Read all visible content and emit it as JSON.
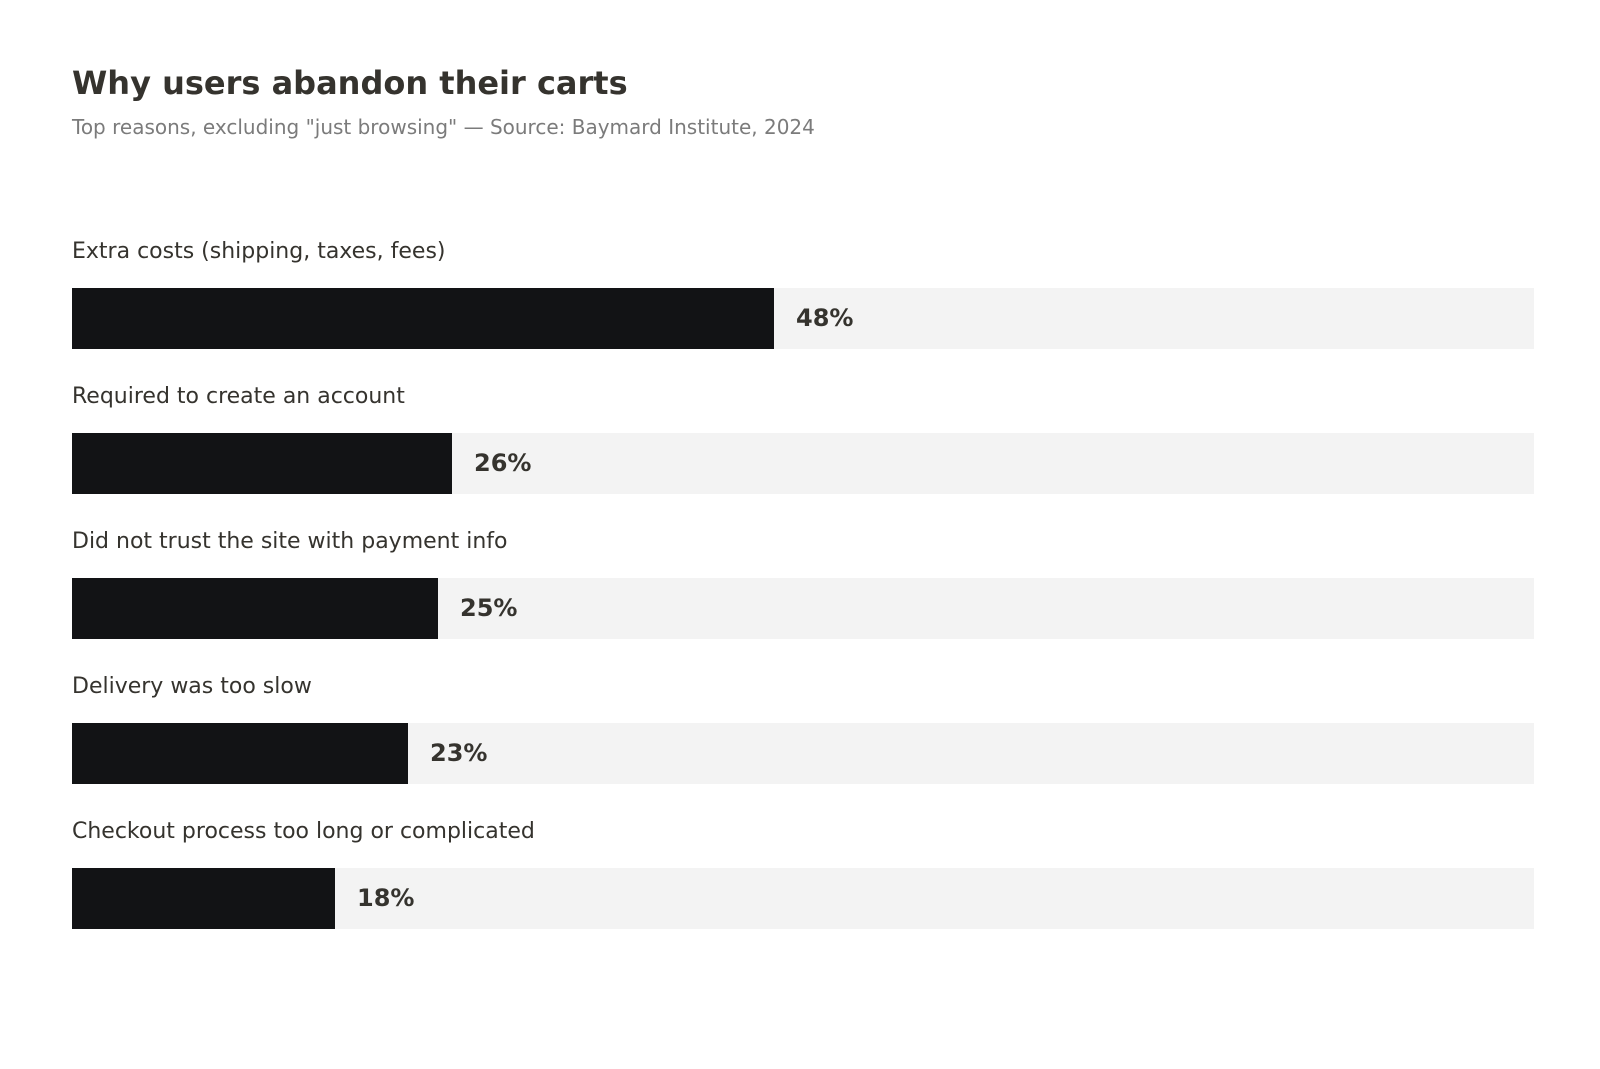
{
  "chart_data": {
    "type": "bar",
    "orientation": "horizontal",
    "title": "Why users abandon their carts",
    "subtitle": "Top reasons, excluding \"just browsing\" — Source: Baymard Institute, 2024",
    "categories": [
      "Extra costs (shipping, taxes, fees)",
      "Required to create an account",
      "Did not trust the site with payment info",
      "Delivery was too slow",
      "Checkout process too long or complicated"
    ],
    "values": [
      48,
      26,
      25,
      23,
      18
    ],
    "value_labels": [
      "48%",
      "26%",
      "25%",
      "23%",
      "18%"
    ],
    "xlim": [
      0,
      100
    ],
    "grid": false,
    "legend": "none",
    "colors": {
      "bar": "#121315",
      "track": "#f3f3f3",
      "text": "#35332e",
      "subtitle": "#7b7b7b"
    }
  }
}
